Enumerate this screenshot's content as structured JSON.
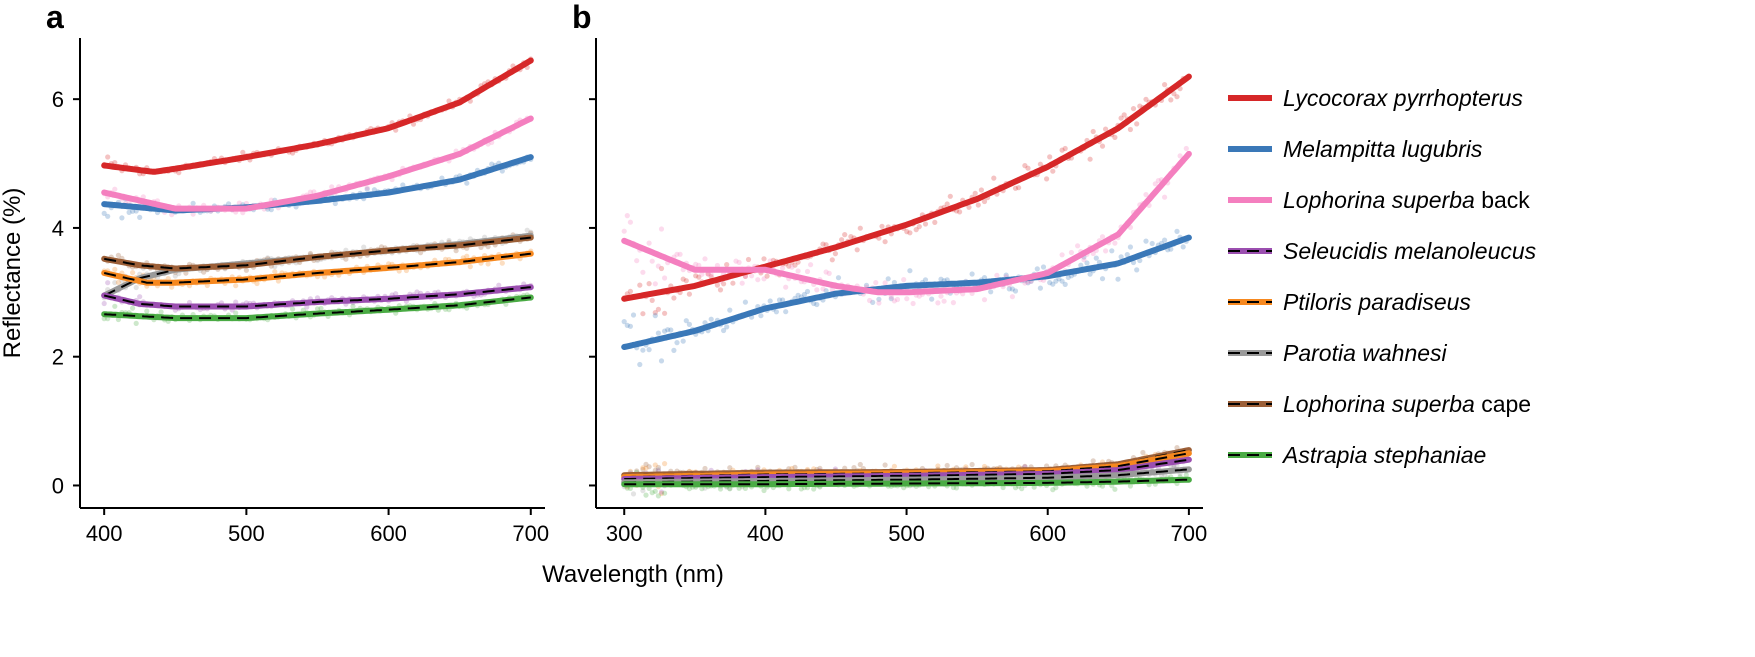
{
  "chart_data": [
    {
      "panel_label": "a",
      "type": "line",
      "xlim": [
        383,
        710
      ],
      "ylim": [
        -0.35,
        6.95
      ],
      "xticks": [
        400,
        500,
        600,
        700
      ],
      "yticks": [
        0,
        2,
        4,
        6
      ],
      "ylabel": "Reflectance (%)",
      "series": [
        {
          "name": "Lycocorax pyrrhopterus",
          "color": "#d62728",
          "dashed": false,
          "x": [
            400,
            435,
            450,
            500,
            550,
            600,
            650,
            700
          ],
          "y": [
            4.97,
            4.87,
            4.92,
            5.1,
            5.3,
            5.55,
            5.95,
            6.6
          ]
        },
        {
          "name": "Melampitta lugubris",
          "color": "#3a78b8",
          "dashed": false,
          "x": [
            400,
            450,
            500,
            550,
            600,
            650,
            700
          ],
          "y": [
            4.37,
            4.27,
            4.32,
            4.42,
            4.55,
            4.75,
            5.1
          ]
        },
        {
          "name": "Lophorina superba back",
          "color": "#f47fbf",
          "dashed": false,
          "x": [
            400,
            450,
            500,
            550,
            600,
            650,
            700
          ],
          "y": [
            4.55,
            4.3,
            4.3,
            4.5,
            4.8,
            5.15,
            5.7
          ]
        },
        {
          "name": "Parotia wahnesi",
          "color": "#9a9a9a",
          "dashed": true,
          "x": [
            400,
            425,
            450,
            500,
            550,
            600,
            650,
            700
          ],
          "y": [
            2.95,
            3.22,
            3.35,
            3.45,
            3.55,
            3.65,
            3.75,
            3.88
          ]
        },
        {
          "name": "Lophorina superba cape",
          "color": "#9c5f37",
          "dashed": true,
          "x": [
            400,
            425,
            450,
            500,
            550,
            600,
            650,
            700
          ],
          "y": [
            3.52,
            3.42,
            3.37,
            3.42,
            3.55,
            3.65,
            3.73,
            3.85
          ]
        },
        {
          "name": "Ptiloris paradiseus",
          "color": "#f6881f",
          "dashed": true,
          "x": [
            400,
            430,
            450,
            500,
            550,
            600,
            650,
            700
          ],
          "y": [
            3.3,
            3.15,
            3.15,
            3.2,
            3.3,
            3.38,
            3.47,
            3.6
          ]
        },
        {
          "name": "Seleucidis melanoleucus",
          "color": "#9b4fb0",
          "dashed": true,
          "x": [
            400,
            425,
            450,
            500,
            550,
            600,
            650,
            700
          ],
          "y": [
            2.95,
            2.82,
            2.78,
            2.78,
            2.85,
            2.9,
            2.97,
            3.08
          ]
        },
        {
          "name": "Astrapia stephaniae",
          "color": "#4aab44",
          "dashed": true,
          "x": [
            400,
            450,
            500,
            550,
            600,
            650,
            700
          ],
          "y": [
            2.66,
            2.6,
            2.6,
            2.67,
            2.73,
            2.8,
            2.92
          ]
        }
      ]
    },
    {
      "panel_label": "b",
      "type": "line",
      "xlim": [
        280,
        710
      ],
      "ylim": [
        -0.35,
        6.95
      ],
      "xticks": [
        300,
        400,
        500,
        600,
        700
      ],
      "yticks": [
        0,
        2,
        4,
        6
      ],
      "ylabel": "",
      "series": [
        {
          "name": "Lycocorax pyrrhopterus",
          "color": "#d62728",
          "dashed": false,
          "x": [
            300,
            350,
            400,
            450,
            500,
            550,
            600,
            650,
            700
          ],
          "y": [
            2.9,
            3.1,
            3.4,
            3.7,
            4.05,
            4.45,
            4.95,
            5.55,
            6.35
          ]
        },
        {
          "name": "Melampitta lugubris",
          "color": "#3a78b8",
          "dashed": false,
          "x": [
            300,
            350,
            400,
            450,
            500,
            550,
            600,
            650,
            700
          ],
          "y": [
            2.15,
            2.4,
            2.75,
            2.98,
            3.1,
            3.15,
            3.25,
            3.45,
            3.85
          ]
        },
        {
          "name": "Lophorina superba back",
          "color": "#f47fbf",
          "dashed": false,
          "x": [
            300,
            350,
            400,
            450,
            480,
            500,
            550,
            600,
            650,
            700
          ],
          "y": [
            3.8,
            3.35,
            3.35,
            3.1,
            3.0,
            3.0,
            3.05,
            3.3,
            3.9,
            5.15
          ]
        },
        {
          "name": "Lophorina superba cape",
          "color": "#9c5f37",
          "dashed": true,
          "x": [
            300,
            400,
            500,
            600,
            650,
            700
          ],
          "y": [
            0.16,
            0.2,
            0.21,
            0.24,
            0.33,
            0.55
          ]
        },
        {
          "name": "Ptiloris paradiseus",
          "color": "#f6881f",
          "dashed": true,
          "x": [
            300,
            400,
            500,
            600,
            650,
            700
          ],
          "y": [
            0.13,
            0.17,
            0.19,
            0.22,
            0.3,
            0.5
          ]
        },
        {
          "name": "Seleucidis melanoleucus",
          "color": "#9b4fb0",
          "dashed": true,
          "x": [
            300,
            400,
            500,
            600,
            650,
            700
          ],
          "y": [
            0.1,
            0.13,
            0.15,
            0.18,
            0.24,
            0.4
          ]
        },
        {
          "name": "Parotia wahnesi",
          "color": "#9a9a9a",
          "dashed": true,
          "x": [
            300,
            400,
            500,
            600,
            650,
            700
          ],
          "y": [
            0.05,
            0.07,
            0.09,
            0.12,
            0.16,
            0.25
          ]
        },
        {
          "name": "Astrapia stephaniae",
          "color": "#4aab44",
          "dashed": true,
          "x": [
            300,
            400,
            500,
            600,
            650,
            700
          ],
          "y": [
            0.02,
            0.02,
            0.03,
            0.04,
            0.06,
            0.09
          ]
        }
      ]
    }
  ],
  "shared_xlabel": "Wavelength (nm)",
  "legend": [
    {
      "italic": "Lycocorax pyrrhopterus",
      "suffix": "",
      "color": "#d62728",
      "dashed": false
    },
    {
      "italic": "Melampitta lugubris",
      "suffix": "",
      "color": "#3a78b8",
      "dashed": false
    },
    {
      "italic": "Lophorina superba",
      "suffix": " back",
      "color": "#f47fbf",
      "dashed": false
    },
    {
      "italic": "Seleucidis melanoleucus",
      "suffix": "",
      "color": "#9b4fb0",
      "dashed": true
    },
    {
      "italic": "Ptiloris paradiseus",
      "suffix": "",
      "color": "#f6881f",
      "dashed": true
    },
    {
      "italic": "Parotia wahnesi",
      "suffix": "",
      "color": "#9a9a9a",
      "dashed": true
    },
    {
      "italic": "Lophorina superba",
      "suffix": " cape",
      "color": "#9c5f37",
      "dashed": true
    },
    {
      "italic": "Astrapia stephaniae",
      "suffix": "",
      "color": "#4aab44",
      "dashed": true
    }
  ]
}
